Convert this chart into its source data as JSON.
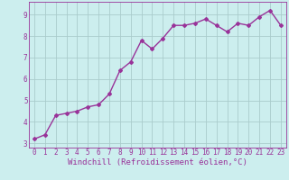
{
  "x": [
    0,
    1,
    2,
    3,
    4,
    5,
    6,
    7,
    8,
    9,
    10,
    11,
    12,
    13,
    14,
    15,
    16,
    17,
    18,
    19,
    20,
    21,
    22,
    23
  ],
  "y": [
    3.2,
    3.4,
    4.3,
    4.4,
    4.5,
    4.7,
    4.8,
    5.3,
    6.4,
    6.8,
    7.8,
    7.4,
    7.9,
    8.5,
    8.5,
    8.6,
    8.8,
    8.5,
    8.2,
    8.6,
    8.5,
    8.9,
    9.2,
    8.5
  ],
  "line_color": "#993399",
  "marker": "D",
  "marker_size": 2.0,
  "bg_color": "#cceeee",
  "grid_color": "#aacccc",
  "xlabel": "Windchill (Refroidissement éolien,°C)",
  "xlabel_color": "#993399",
  "tick_color": "#993399",
  "ylim": [
    2.8,
    9.6
  ],
  "xlim": [
    -0.5,
    23.5
  ],
  "yticks": [
    3,
    4,
    5,
    6,
    7,
    8,
    9
  ],
  "xticks": [
    0,
    1,
    2,
    3,
    4,
    5,
    6,
    7,
    8,
    9,
    10,
    11,
    12,
    13,
    14,
    15,
    16,
    17,
    18,
    19,
    20,
    21,
    22,
    23
  ],
  "spine_color": "#993399",
  "linewidth": 1.0,
  "font_family": "monospace",
  "tick_fontsize": 5.5,
  "xlabel_fontsize": 6.5
}
